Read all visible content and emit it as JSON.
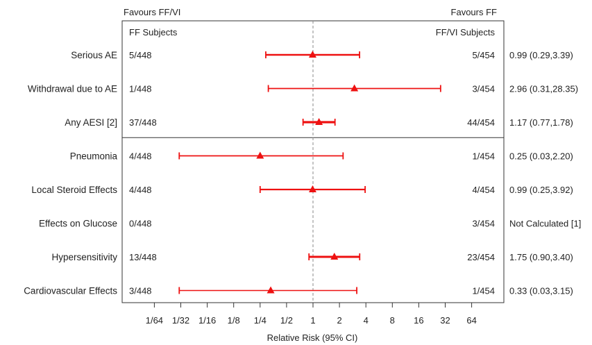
{
  "chart_data": {
    "type": "forest",
    "header_left": "Favours FF/VI",
    "header_right": "Favours FF",
    "col_left_title": "FF Subjects",
    "col_right_title": "FF/VI Subjects",
    "xlabel": "Relative Risk (95% CI)",
    "x_scale": "log2",
    "xlim": [
      0.01,
      128
    ],
    "reference_line": 1,
    "ticks": [
      {
        "value": 0.015625,
        "label": "1/64"
      },
      {
        "value": 0.03125,
        "label": "1/32"
      },
      {
        "value": 0.0625,
        "label": "1/16"
      },
      {
        "value": 0.125,
        "label": "1/8"
      },
      {
        "value": 0.25,
        "label": "1/4"
      },
      {
        "value": 0.5,
        "label": "1/2"
      },
      {
        "value": 1,
        "label": "1"
      },
      {
        "value": 2,
        "label": "2"
      },
      {
        "value": 4,
        "label": "4"
      },
      {
        "value": 8,
        "label": "8"
      },
      {
        "value": 16,
        "label": "16"
      },
      {
        "value": 32,
        "label": "32"
      },
      {
        "value": 64,
        "label": "64"
      }
    ],
    "divider_after_row": 2,
    "rows": [
      {
        "label": "Serious AE",
        "ff": "5/448",
        "ffvi": "5/454",
        "estimate_text": "0.99 (0.29,3.39)",
        "rr": 0.99,
        "lo": 0.29,
        "hi": 3.39
      },
      {
        "label": "Withdrawal due to AE",
        "ff": "1/448",
        "ffvi": "3/454",
        "estimate_text": "2.96 (0.31,28.35)",
        "rr": 2.96,
        "lo": 0.31,
        "hi": 28.35
      },
      {
        "label": "Any AESI [2]",
        "ff": "37/448",
        "ffvi": "44/454",
        "estimate_text": "1.17 (0.77,1.78)",
        "rr": 1.17,
        "lo": 0.77,
        "hi": 1.78
      },
      {
        "label": "Pneumonia",
        "ff": "4/448",
        "ffvi": "1/454",
        "estimate_text": "0.25 (0.03,2.20)",
        "rr": 0.25,
        "lo": 0.03,
        "hi": 2.2
      },
      {
        "label": "Local Steroid Effects",
        "ff": "4/448",
        "ffvi": "4/454",
        "estimate_text": "0.99 (0.25,3.92)",
        "rr": 0.99,
        "lo": 0.25,
        "hi": 3.92
      },
      {
        "label": "Effects on Glucose",
        "ff": "0/448",
        "ffvi": "3/454",
        "estimate_text": "Not Calculated [1]",
        "rr": null,
        "lo": null,
        "hi": null
      },
      {
        "label": "Hypersensitivity",
        "ff": "13/448",
        "ffvi": "23/454",
        "estimate_text": "1.75 (0.90,3.40)",
        "rr": 1.75,
        "lo": 0.9,
        "hi": 3.4
      },
      {
        "label": "Cardiovascular Effects",
        "ff": "3/448",
        "ffvi": "1/454",
        "estimate_text": "0.33 (0.03,3.15)",
        "rr": 0.33,
        "lo": 0.03,
        "hi": 3.15
      }
    ],
    "colors": {
      "mark": "#ee1111",
      "axis": "#333333",
      "reference": "#888888",
      "text": "#222222"
    }
  }
}
